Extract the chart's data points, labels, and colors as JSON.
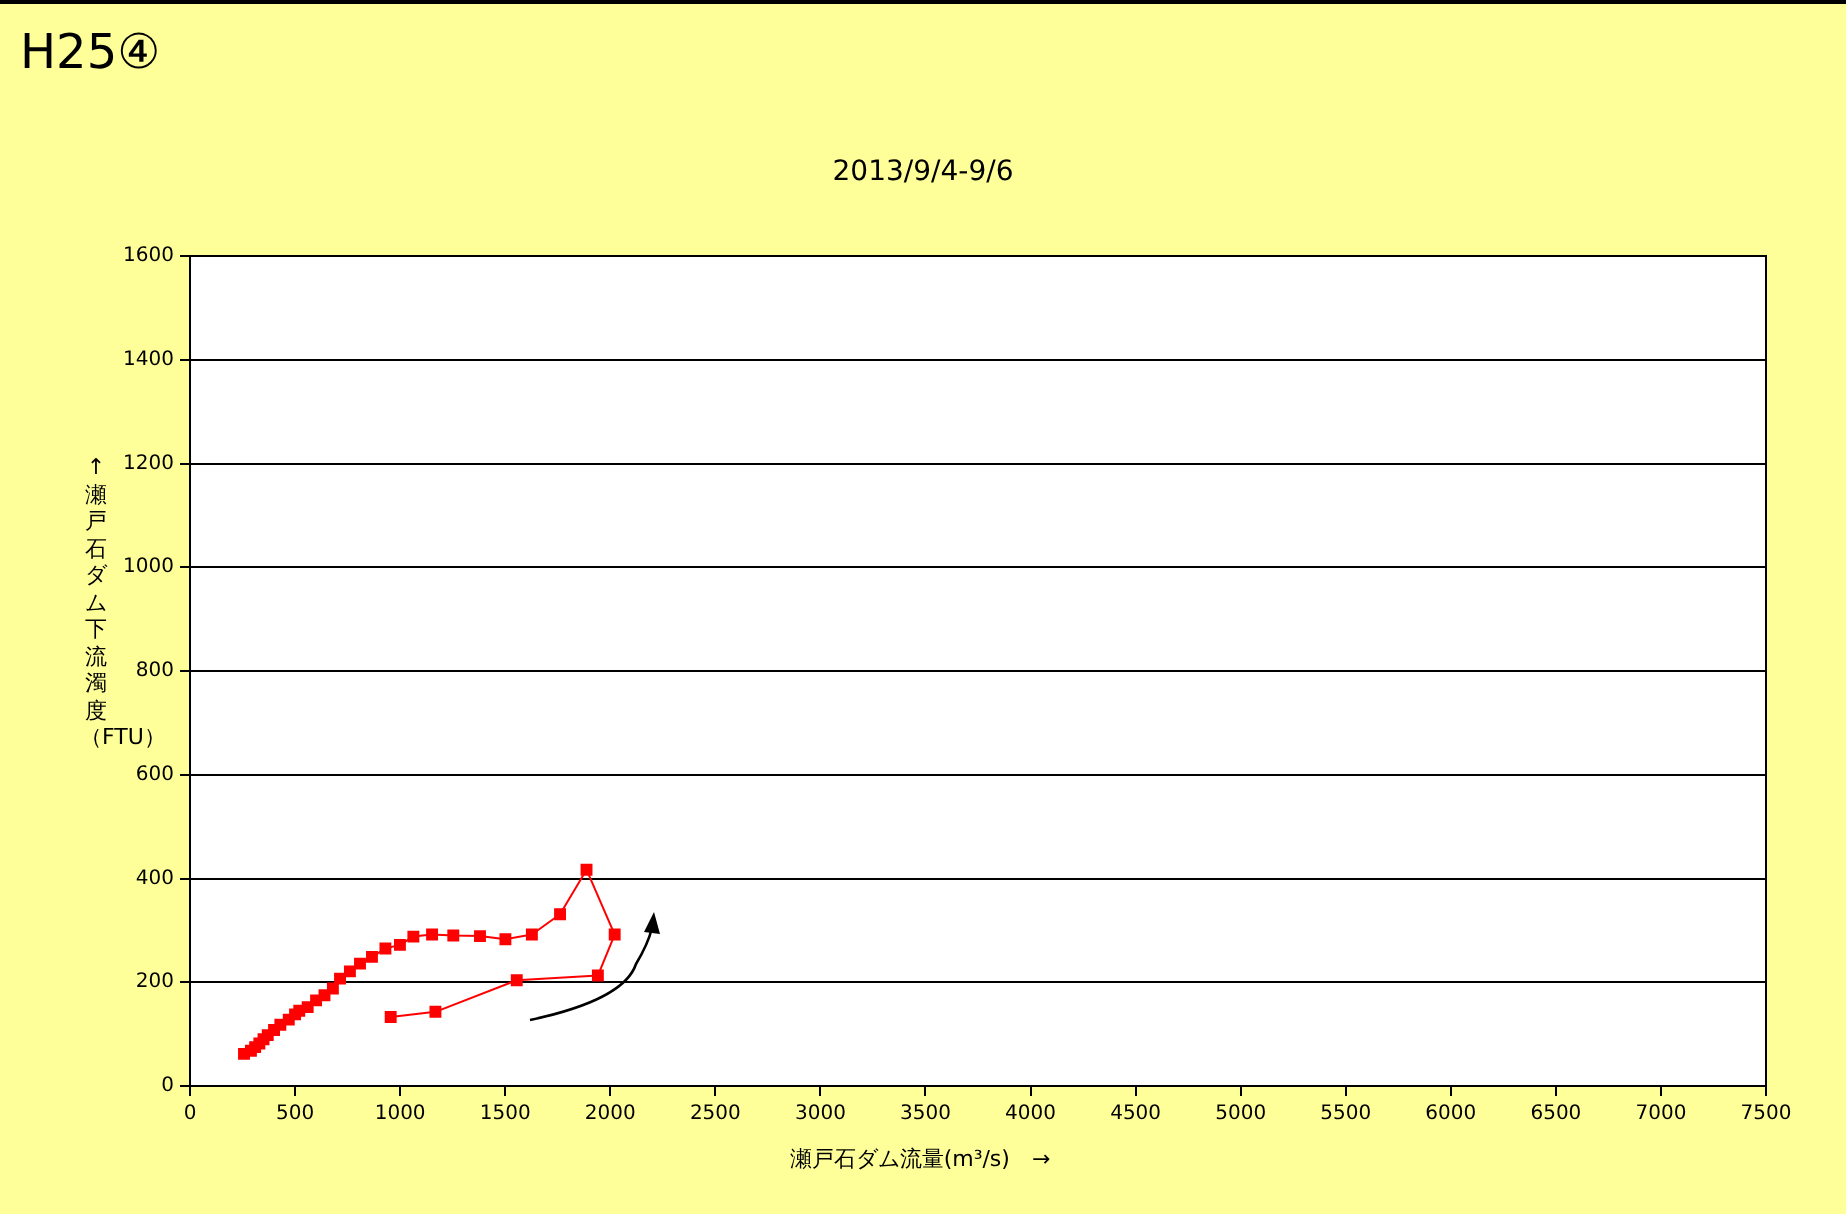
{
  "chart_data": {
    "type": "line",
    "title": "H25④",
    "subtitle": "2013/9/4-9/6",
    "xlabel": "瀬戸石ダム流量(m³/s)　→",
    "ylabel": "↑ 瀬戸石ダム下流濁度（FTU）",
    "x": [
      257,
      290,
      310,
      330,
      350,
      370,
      400,
      430,
      470,
      500,
      520,
      560,
      600,
      640,
      680,
      714,
      761,
      809,
      866,
      930,
      999,
      1063,
      1152,
      1253,
      1380,
      1501,
      1627,
      1761,
      1887,
      2021,
      1941,
      1555,
      1168,
      955
    ],
    "series": [
      {
        "color": "#ff0000",
        "values": [
          62,
          68,
          75,
          82,
          90,
          98,
          108,
          118,
          128,
          138,
          145,
          152,
          165,
          175,
          188,
          207,
          221,
          236,
          249,
          265,
          272,
          288,
          292,
          290,
          289,
          283,
          292,
          331,
          417,
          292,
          213,
          204,
          143,
          133
        ]
      }
    ],
    "xlim": [
      0,
      7500
    ],
    "xticks": [
      0,
      500,
      1000,
      1500,
      2000,
      2500,
      3000,
      3500,
      4000,
      4500,
      5000,
      5500,
      6000,
      6500,
      7000,
      7500
    ],
    "ylim": [
      0,
      1600
    ],
    "yticks": [
      0,
      200,
      400,
      600,
      800,
      1000,
      1200,
      1400,
      1600
    ],
    "grid": "y",
    "marker": "square"
  }
}
